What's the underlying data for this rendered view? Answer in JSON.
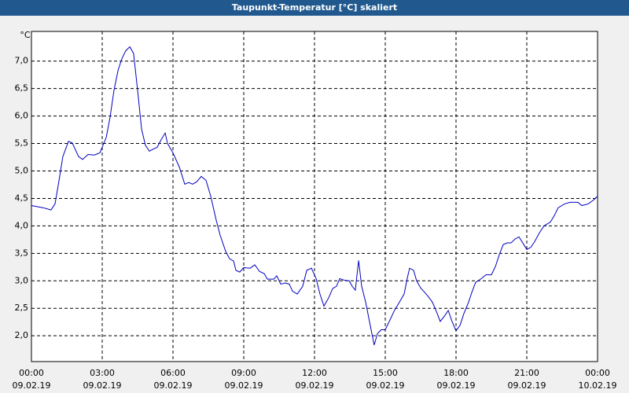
{
  "chart_data": {
    "type": "line",
    "title": "Taupunkt-Temperatur [°C] skaliert",
    "y_label": "°C",
    "grid": true,
    "xlim": [
      0,
      24
    ],
    "ylim": [
      1.53,
      7.54
    ],
    "xticks": [
      {
        "value": 0,
        "label": "00:00",
        "date": "09.02.19"
      },
      {
        "value": 3,
        "label": "03:00",
        "date": "09.02.19"
      },
      {
        "value": 6,
        "label": "06:00",
        "date": "09.02.19"
      },
      {
        "value": 9,
        "label": "09:00",
        "date": "09.02.19"
      },
      {
        "value": 12,
        "label": "12:00",
        "date": "09.02.19"
      },
      {
        "value": 15,
        "label": "15:00",
        "date": "09.02.19"
      },
      {
        "value": 18,
        "label": "18:00",
        "date": "09.02.19"
      },
      {
        "value": 21,
        "label": "21:00",
        "date": "09.02.19"
      },
      {
        "value": 24,
        "label": "00:00",
        "date": "10.02.19"
      }
    ],
    "yticks": [
      {
        "value": 2.0,
        "label": "2,0"
      },
      {
        "value": 2.5,
        "label": "2,5"
      },
      {
        "value": 3.0,
        "label": "3,0"
      },
      {
        "value": 3.5,
        "label": "3,5"
      },
      {
        "value": 4.0,
        "label": "4,0"
      },
      {
        "value": 4.5,
        "label": "4,5"
      },
      {
        "value": 5.0,
        "label": "5,0"
      },
      {
        "value": 5.5,
        "label": "5,5"
      },
      {
        "value": 6.0,
        "label": "6,0"
      },
      {
        "value": 6.5,
        "label": "6,5"
      },
      {
        "value": 7.0,
        "label": "7,0"
      }
    ],
    "x": [
      0,
      0.5,
      0.83,
      1,
      1.17,
      1.33,
      1.57,
      1.73,
      2,
      2.17,
      2.4,
      2.67,
      2.9,
      3.17,
      3.33,
      3.5,
      3.67,
      3.83,
      4,
      4.17,
      4.33,
      4.5,
      4.67,
      4.83,
      5,
      5.17,
      5.33,
      5.5,
      5.67,
      5.77,
      6,
      6.27,
      6.5,
      6.67,
      6.83,
      7,
      7.2,
      7.4,
      7.6,
      7.83,
      8,
      8.23,
      8.4,
      8.57,
      8.67,
      8.83,
      9,
      9.27,
      9.47,
      9.67,
      9.87,
      10,
      10.27,
      10.4,
      10.57,
      10.77,
      10.93,
      11.07,
      11.27,
      11.5,
      11.67,
      11.87,
      12.07,
      12.23,
      12.4,
      12.6,
      12.77,
      12.93,
      13.07,
      13.27,
      13.47,
      13.6,
      13.73,
      13.87,
      14,
      14.17,
      14.33,
      14.53,
      14.67,
      14.83,
      15,
      15.17,
      15.4,
      15.6,
      15.8,
      15.93,
      16.03,
      16.2,
      16.33,
      16.5,
      16.67,
      16.83,
      17,
      17.17,
      17.33,
      17.53,
      17.67,
      17.83,
      18,
      18.17,
      18.33,
      18.53,
      18.67,
      18.83,
      19.07,
      19.27,
      19.5,
      19.67,
      19.83,
      20,
      20.17,
      20.33,
      20.5,
      20.67,
      20.83,
      21,
      21.17,
      21.33,
      21.53,
      21.73,
      22,
      22.17,
      22.33,
      22.6,
      22.83,
      23.17,
      23.33,
      23.6,
      23.83,
      24
    ],
    "series": [
      {
        "name": "Taupunkt-Temperatur",
        "color": "#0000c0",
        "values": [
          4.37,
          4.33,
          4.29,
          4.4,
          4.83,
          5.26,
          5.54,
          5.51,
          5.26,
          5.21,
          5.3,
          5.29,
          5.33,
          5.61,
          5.97,
          6.47,
          6.83,
          7.04,
          7.19,
          7.26,
          7.14,
          6.47,
          5.76,
          5.47,
          5.36,
          5.4,
          5.43,
          5.57,
          5.69,
          5.5,
          5.33,
          5.07,
          4.76,
          4.79,
          4.76,
          4.8,
          4.9,
          4.83,
          4.54,
          4.11,
          3.83,
          3.54,
          3.4,
          3.36,
          3.19,
          3.16,
          3.24,
          3.23,
          3.29,
          3.17,
          3.13,
          3.03,
          3.03,
          3.09,
          2.94,
          2.96,
          2.94,
          2.81,
          2.76,
          2.9,
          3.19,
          3.23,
          3.04,
          2.76,
          2.54,
          2.69,
          2.86,
          2.9,
          3.04,
          3.01,
          3.0,
          2.9,
          2.83,
          3.37,
          2.9,
          2.61,
          2.26,
          1.83,
          2.04,
          2.11,
          2.11,
          2.26,
          2.47,
          2.61,
          2.76,
          3.04,
          3.23,
          3.19,
          3.0,
          2.87,
          2.79,
          2.71,
          2.61,
          2.44,
          2.26,
          2.37,
          2.46,
          2.26,
          2.09,
          2.19,
          2.4,
          2.61,
          2.79,
          2.97,
          3.04,
          3.11,
          3.11,
          3.26,
          3.47,
          3.66,
          3.69,
          3.69,
          3.76,
          3.8,
          3.69,
          3.57,
          3.61,
          3.71,
          3.87,
          4.0,
          4.07,
          4.19,
          4.33,
          4.4,
          4.43,
          4.43,
          4.37,
          4.4,
          4.47,
          4.54
        ]
      }
    ]
  }
}
